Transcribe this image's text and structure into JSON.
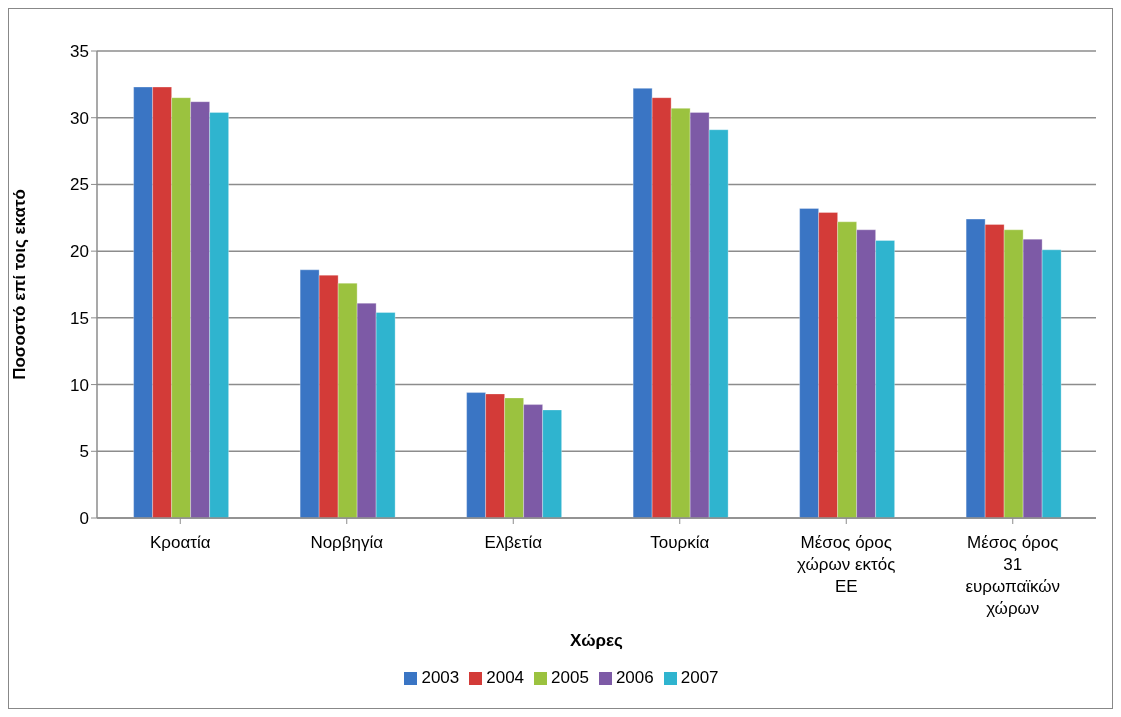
{
  "chart_data": {
    "type": "bar",
    "xlabel": "Χώρες",
    "ylabel": "Ποσοστό επί τοις εκατό",
    "categories": [
      "Κροατία",
      "Νορβηγία",
      "Ελβετία",
      "Τουρκία",
      "Μέσος όρος χώρων εκτός ΕΕ",
      "Μέσος όρος 31 ευρωπαϊκών χώρων"
    ],
    "series": [
      {
        "name": "2003",
        "color": "#3a75c4",
        "values": [
          32.3,
          18.6,
          9.4,
          32.2,
          23.2,
          22.4
        ]
      },
      {
        "name": "2004",
        "color": "#d33b38",
        "values": [
          32.3,
          18.2,
          9.3,
          31.5,
          22.9,
          22.0
        ]
      },
      {
        "name": "2005",
        "color": "#9bc23f",
        "values": [
          31.5,
          17.6,
          9.0,
          30.7,
          22.2,
          21.6
        ]
      },
      {
        "name": "2006",
        "color": "#7d5aa6",
        "values": [
          31.2,
          16.1,
          8.5,
          30.4,
          21.6,
          20.9
        ]
      },
      {
        "name": "2007",
        "color": "#2fb4cf",
        "values": [
          30.4,
          15.4,
          8.1,
          29.1,
          20.8,
          20.1
        ]
      }
    ],
    "ylim": [
      0,
      35
    ],
    "yticks": [
      0,
      5,
      10,
      15,
      20,
      25,
      30,
      35
    ],
    "grid": "y",
    "legend": "bottom"
  }
}
